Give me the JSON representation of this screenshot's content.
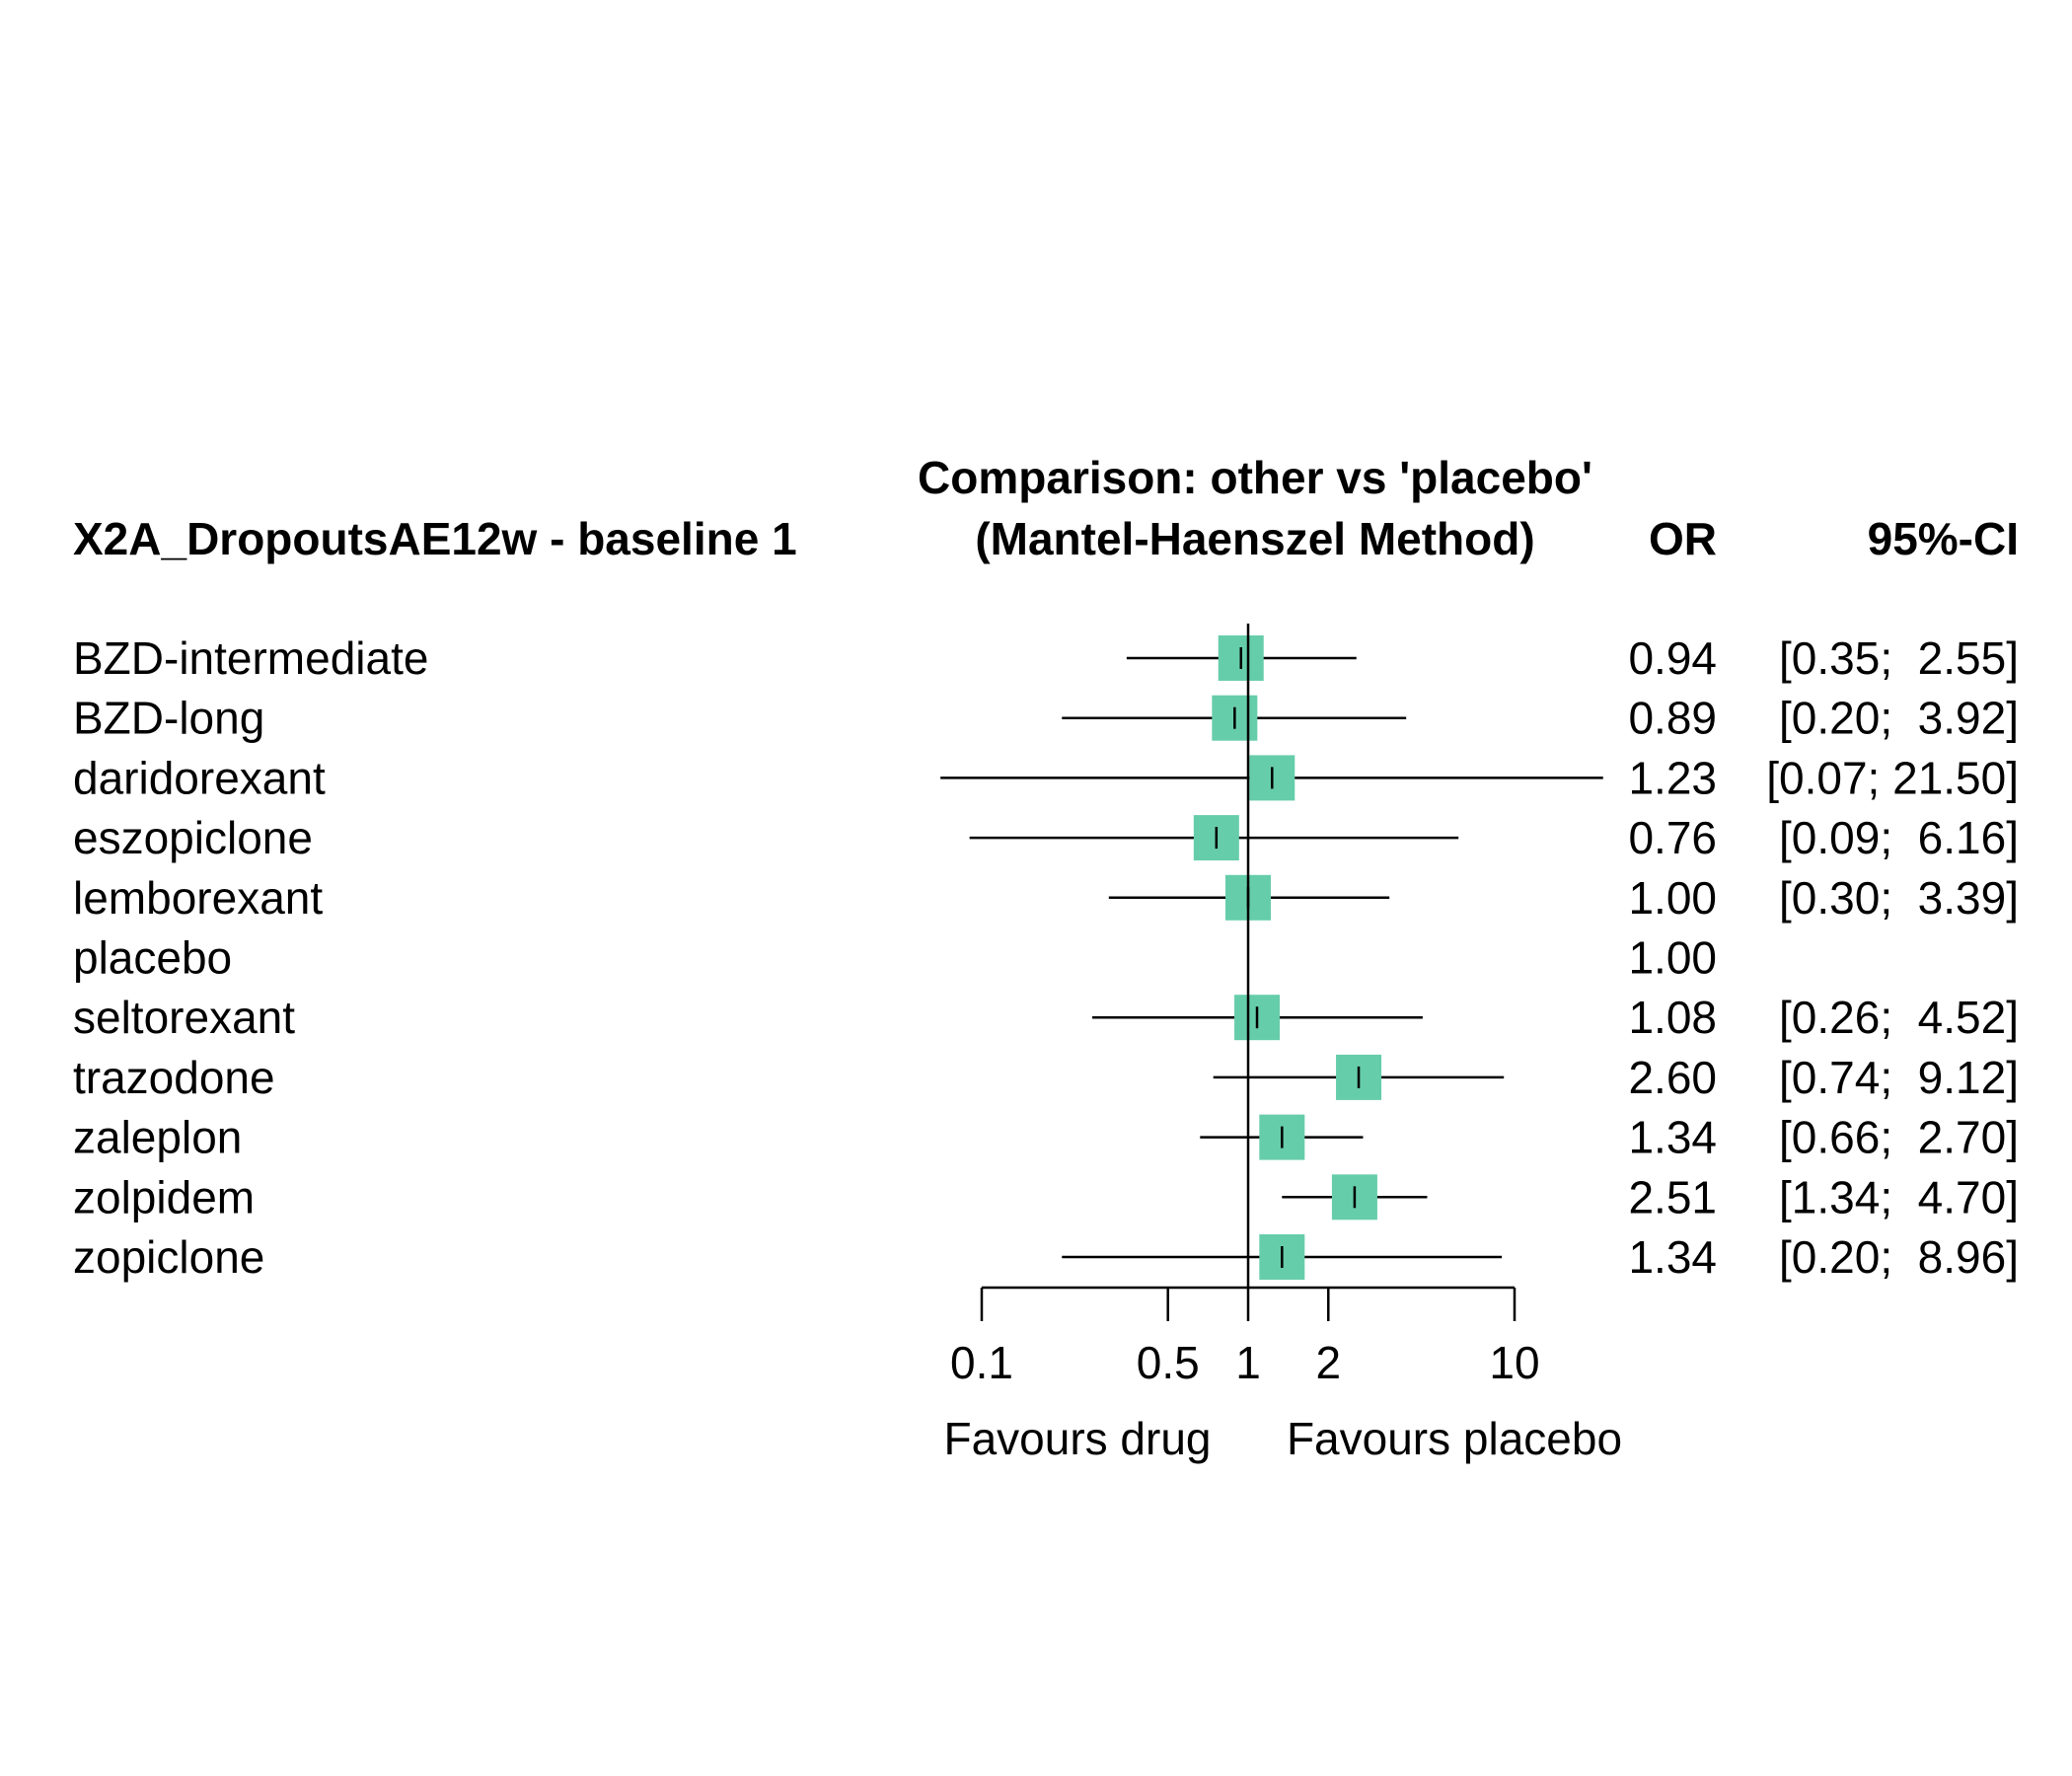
{
  "chart_data": {
    "type": "forest",
    "header_left": "X2A_DropoutsAE12w - baseline 1",
    "title_line1": "Comparison: other vs 'placebo'",
    "title_line2": "(Mantel-Haenszel Method)",
    "col_or_header": "OR",
    "col_ci_header": "95%-CI",
    "x_scale": "log",
    "x_ticks": [
      0.1,
      0.5,
      1,
      2,
      10
    ],
    "x_tick_labels": [
      "0.1",
      "0.5",
      "1",
      "2",
      "10"
    ],
    "xlim": [
      0.1,
      10
    ],
    "reference_line": 1,
    "label_favours_left": "Favours drug",
    "label_favours_right": "Favours placebo",
    "marker_color": "#66CDAA",
    "rows": [
      {
        "treatment": "BZD-intermediate",
        "or": 0.94,
        "lower": 0.35,
        "upper": 2.55,
        "or_text": "0.94",
        "ci_text": "[0.35;  2.55]"
      },
      {
        "treatment": "BZD-long",
        "or": 0.89,
        "lower": 0.2,
        "upper": 3.92,
        "or_text": "0.89",
        "ci_text": "[0.20;  3.92]"
      },
      {
        "treatment": "daridorexant",
        "or": 1.23,
        "lower": 0.07,
        "upper": 21.5,
        "or_text": "1.23",
        "ci_text": "[0.07; 21.50]"
      },
      {
        "treatment": "eszopiclone",
        "or": 0.76,
        "lower": 0.09,
        "upper": 6.16,
        "or_text": "0.76",
        "ci_text": "[0.09;  6.16]"
      },
      {
        "treatment": "lemborexant",
        "or": 1.0,
        "lower": 0.3,
        "upper": 3.39,
        "or_text": "1.00",
        "ci_text": "[0.30;  3.39]"
      },
      {
        "treatment": "placebo",
        "or": 1.0,
        "lower": null,
        "upper": null,
        "or_text": "1.00",
        "ci_text": ""
      },
      {
        "treatment": "seltorexant",
        "or": 1.08,
        "lower": 0.26,
        "upper": 4.52,
        "or_text": "1.08",
        "ci_text": "[0.26;  4.52]"
      },
      {
        "treatment": "trazodone",
        "or": 2.6,
        "lower": 0.74,
        "upper": 9.12,
        "or_text": "2.60",
        "ci_text": "[0.74;  9.12]"
      },
      {
        "treatment": "zaleplon",
        "or": 1.34,
        "lower": 0.66,
        "upper": 2.7,
        "or_text": "1.34",
        "ci_text": "[0.66;  2.70]"
      },
      {
        "treatment": "zolpidem",
        "or": 2.51,
        "lower": 1.34,
        "upper": 4.7,
        "or_text": "2.51",
        "ci_text": "[1.34;  4.70]"
      },
      {
        "treatment": "zopiclone",
        "or": 1.34,
        "lower": 0.2,
        "upper": 8.96,
        "or_text": "1.34",
        "ci_text": "[0.20;  8.96]"
      }
    ]
  }
}
